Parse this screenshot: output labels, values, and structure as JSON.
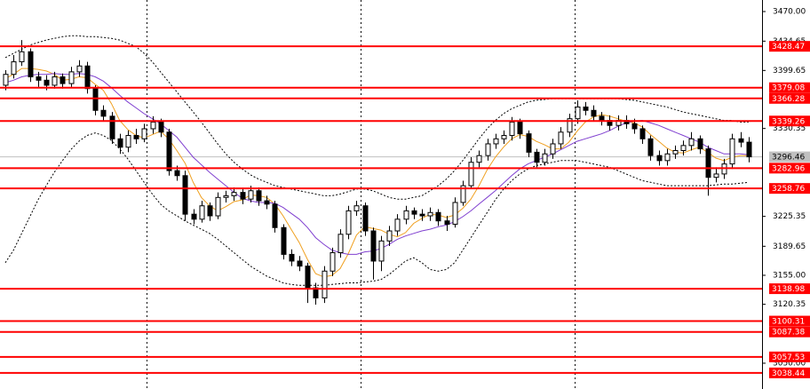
{
  "chart_data": {
    "type": "candlestick",
    "ylim": [
      3019.2,
      3483.8
    ],
    "yticks": [
      {
        "value": 3470,
        "label": "3470.00"
      },
      3434.65,
      3399.65,
      3330.35,
      3225.35,
      3189.65,
      {
        "value": 3155,
        "label": "3155.00"
      },
      3120.35,
      {
        "value": 3050,
        "label": "3050.00"
      }
    ],
    "levels": [
      3428.47,
      3379.08,
      3366.28,
      3339.26,
      3282.96,
      3258.76,
      3138.98,
      3100.31,
      3087.38,
      3057.53,
      3038.44
    ],
    "level_color": "#ff0000",
    "last_price": 3296.46,
    "open": [
      3382,
      3395,
      3410,
      3422,
      3392,
      3388,
      3382,
      3392,
      3384,
      3398,
      3405,
      3378,
      3352,
      3345,
      3318,
      3308,
      3322,
      3318,
      3330,
      3338,
      3326,
      3280,
      3274,
      3228,
      3222,
      3238,
      3226,
      3248,
      3250,
      3254,
      3246,
      3256,
      3244,
      3240,
      3212,
      3180,
      3172,
      3166,
      3140,
      3128,
      3160,
      3182,
      3204,
      3232,
      3238,
      3208,
      3172,
      3196,
      3208,
      3222,
      3232,
      3228,
      3226,
      3230,
      3220,
      3216,
      3242,
      3262,
      3290,
      3298,
      3312,
      3318,
      3322,
      3338,
      3324,
      3302,
      3290,
      3300,
      3312,
      3326,
      3342,
      3356,
      3352,
      3345,
      3340,
      3334,
      3340,
      3336,
      3330,
      3318,
      3298,
      3292,
      3300,
      3304,
      3310,
      3318,
      3306,
      3272,
      3276,
      3288,
      3318,
      3314
    ],
    "high": [
      3400,
      3418,
      3436,
      3426,
      3398,
      3394,
      3398,
      3396,
      3404,
      3412,
      3410,
      3382,
      3358,
      3350,
      3324,
      3328,
      3330,
      3336,
      3345,
      3342,
      3330,
      3286,
      3280,
      3234,
      3244,
      3242,
      3254,
      3256,
      3260,
      3258,
      3262,
      3260,
      3250,
      3244,
      3216,
      3186,
      3178,
      3170,
      3146,
      3166,
      3188,
      3210,
      3238,
      3244,
      3242,
      3212,
      3202,
      3214,
      3228,
      3238,
      3236,
      3234,
      3236,
      3234,
      3226,
      3248,
      3268,
      3296,
      3304,
      3318,
      3324,
      3328,
      3344,
      3342,
      3328,
      3306,
      3306,
      3318,
      3332,
      3348,
      3364,
      3362,
      3358,
      3350,
      3346,
      3346,
      3346,
      3342,
      3334,
      3322,
      3304,
      3306,
      3310,
      3316,
      3326,
      3322,
      3310,
      3284,
      3294,
      3324,
      3326,
      3320
    ],
    "low": [
      3376,
      3390,
      3405,
      3386,
      3380,
      3376,
      3378,
      3378,
      3380,
      3392,
      3372,
      3346,
      3340,
      3312,
      3300,
      3302,
      3312,
      3314,
      3324,
      3320,
      3274,
      3268,
      3220,
      3216,
      3218,
      3220,
      3222,
      3242,
      3244,
      3240,
      3242,
      3238,
      3234,
      3206,
      3174,
      3166,
      3160,
      3122,
      3120,
      3122,
      3154,
      3176,
      3198,
      3226,
      3202,
      3150,
      3160,
      3190,
      3202,
      3216,
      3222,
      3220,
      3220,
      3214,
      3208,
      3212,
      3238,
      3258,
      3284,
      3292,
      3306,
      3312,
      3316,
      3318,
      3296,
      3284,
      3286,
      3294,
      3306,
      3320,
      3336,
      3346,
      3340,
      3334,
      3328,
      3328,
      3330,
      3324,
      3312,
      3292,
      3286,
      3286,
      3294,
      3298,
      3304,
      3300,
      3250,
      3266,
      3270,
      3282,
      3308,
      3290
    ],
    "close": [
      3395,
      3410,
      3422,
      3392,
      3388,
      3382,
      3392,
      3384,
      3398,
      3405,
      3378,
      3352,
      3345,
      3318,
      3308,
      3322,
      3318,
      3330,
      3338,
      3326,
      3280,
      3274,
      3228,
      3222,
      3238,
      3226,
      3248,
      3250,
      3254,
      3246,
      3256,
      3244,
      3240,
      3212,
      3180,
      3172,
      3166,
      3140,
      3128,
      3160,
      3182,
      3204,
      3232,
      3238,
      3208,
      3172,
      3196,
      3208,
      3222,
      3232,
      3228,
      3226,
      3230,
      3220,
      3216,
      3242,
      3262,
      3290,
      3298,
      3312,
      3318,
      3322,
      3338,
      3324,
      3302,
      3290,
      3300,
      3312,
      3326,
      3342,
      3356,
      3352,
      3345,
      3340,
      3334,
      3340,
      3336,
      3330,
      3318,
      3298,
      3292,
      3300,
      3304,
      3310,
      3318,
      3306,
      3272,
      3276,
      3288,
      3318,
      3314,
      3296.46
    ],
    "lines": [
      {
        "color": "#f0a020",
        "dash": false,
        "values": [
          3390,
          3395,
          3402,
          3402,
          3401,
          3399,
          3395,
          3388,
          3389,
          3392,
          3391,
          3383,
          3376,
          3360,
          3340,
          3329,
          3322,
          3319,
          3323,
          3327,
          3318,
          3304,
          3289,
          3266,
          3248,
          3238,
          3232,
          3237,
          3243,
          3245,
          3251,
          3250,
          3248,
          3240,
          3226,
          3210,
          3194,
          3174,
          3157,
          3153,
          3155,
          3163,
          3181,
          3203,
          3213,
          3211,
          3209,
          3204,
          3201,
          3206,
          3217,
          3223,
          3228,
          3227,
          3224,
          3227,
          3235,
          3246,
          3262,
          3281,
          3296,
          3308,
          3318,
          3323,
          3321,
          3315,
          3311,
          3306,
          3306,
          3314,
          3327,
          3338,
          3344,
          3347,
          3345,
          3342,
          3339,
          3337,
          3332,
          3323,
          3315,
          3307,
          3302,
          3301,
          3305,
          3308,
          3302,
          3295,
          3292,
          3296,
          3298,
          3298
        ]
      },
      {
        "color": "#8040d0",
        "dash": false,
        "values": [
          3385,
          3388,
          3392,
          3394,
          3395,
          3395,
          3396,
          3395,
          3395,
          3396,
          3395,
          3392,
          3387,
          3379,
          3370,
          3362,
          3355,
          3348,
          3342,
          3336,
          3328,
          3320,
          3308,
          3296,
          3287,
          3278,
          3270,
          3262,
          3254,
          3247,
          3244,
          3242,
          3242,
          3241,
          3236,
          3229,
          3222,
          3212,
          3200,
          3192,
          3185,
          3182,
          3180,
          3180,
          3183,
          3184,
          3187,
          3192,
          3198,
          3202,
          3205,
          3208,
          3210,
          3213,
          3215,
          3219,
          3225,
          3232,
          3240,
          3248,
          3256,
          3265,
          3274,
          3282,
          3288,
          3292,
          3296,
          3300,
          3305,
          3310,
          3315,
          3318,
          3321,
          3324,
          3328,
          3333,
          3337,
          3339,
          3340,
          3337,
          3334,
          3330,
          3326,
          3322,
          3318,
          3314,
          3308,
          3304,
          3300,
          3300,
          3300,
          3299
        ]
      },
      {
        "color": "#000000",
        "dash": true,
        "values": [
          3415,
          3420,
          3425,
          3430,
          3433,
          3436,
          3438,
          3440,
          3441,
          3441,
          3440,
          3440,
          3439,
          3438,
          3436,
          3432,
          3428,
          3420,
          3410,
          3398,
          3386,
          3374,
          3362,
          3350,
          3338,
          3325,
          3312,
          3300,
          3290,
          3282,
          3275,
          3270,
          3266,
          3262,
          3260,
          3258,
          3256,
          3254,
          3252,
          3250,
          3250,
          3252,
          3255,
          3258,
          3258,
          3256,
          3252,
          3248,
          3246,
          3246,
          3248,
          3250,
          3256,
          3262,
          3270,
          3280,
          3292,
          3305,
          3318,
          3330,
          3340,
          3348,
          3354,
          3358,
          3362,
          3364,
          3365,
          3366,
          3366,
          3366,
          3366,
          3366,
          3366,
          3366,
          3366,
          3366,
          3365,
          3364,
          3362,
          3360,
          3358,
          3356,
          3353,
          3350,
          3348,
          3346,
          3344,
          3342,
          3340,
          3340,
          3338,
          3338
        ]
      },
      {
        "color": "#000000",
        "dash": true,
        "values": [
          3170,
          3185,
          3205,
          3225,
          3245,
          3262,
          3278,
          3292,
          3305,
          3315,
          3322,
          3325,
          3322,
          3316,
          3306,
          3294,
          3280,
          3266,
          3252,
          3240,
          3232,
          3226,
          3220,
          3215,
          3210,
          3205,
          3198,
          3190,
          3182,
          3174,
          3166,
          3160,
          3154,
          3150,
          3146,
          3144,
          3143,
          3143,
          3143,
          3143,
          3144,
          3145,
          3146,
          3146,
          3147,
          3148,
          3150,
          3156,
          3164,
          3172,
          3176,
          3170,
          3162,
          3160,
          3162,
          3170,
          3185,
          3200,
          3215,
          3230,
          3245,
          3258,
          3268,
          3276,
          3282,
          3286,
          3288,
          3290,
          3292,
          3292,
          3292,
          3290,
          3288,
          3286,
          3284,
          3280,
          3276,
          3272,
          3268,
          3266,
          3264,
          3262,
          3262,
          3262,
          3262,
          3262,
          3262,
          3263,
          3264,
          3264,
          3265,
          3266
        ]
      }
    ]
  }
}
